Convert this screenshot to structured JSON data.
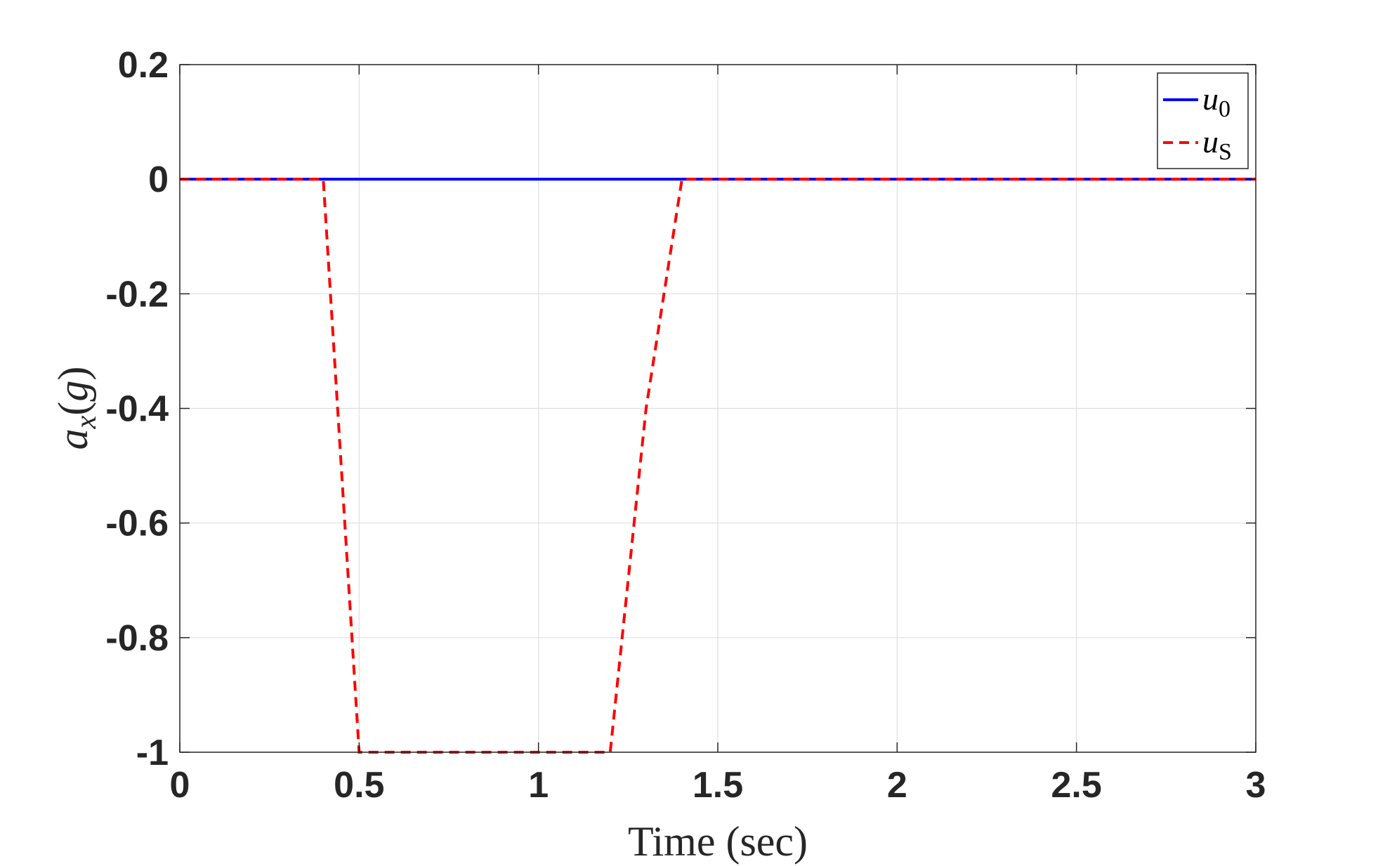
{
  "chart_data": {
    "type": "line",
    "xlabel": "Time (sec)",
    "ylabel": {
      "var": "a",
      "sub": "x",
      "unit": "g"
    },
    "xlim": [
      0,
      3
    ],
    "ylim": [
      -1,
      0.2
    ],
    "xticks": [
      0,
      0.5,
      1,
      1.5,
      2,
      2.5,
      3
    ],
    "xtick_labels": [
      "0",
      "0.5",
      "1",
      "1.5",
      "2",
      "2.5",
      "3"
    ],
    "yticks": [
      0.2,
      0,
      -0.2,
      -0.4,
      -0.6,
      -0.8,
      -1
    ],
    "ytick_labels": [
      "0.2",
      "0",
      "-0.2",
      "-0.4",
      "-0.6",
      "-0.8",
      "-1"
    ],
    "grid": true,
    "legend_position": "top-right",
    "series": [
      {
        "name": "u_0",
        "legend_base": "u",
        "legend_sub": "0",
        "color": "#0000ff",
        "style": "solid",
        "x": [
          0,
          3
        ],
        "y": [
          0,
          0
        ]
      },
      {
        "name": "u_S",
        "legend_base": "u",
        "legend_sub": "S",
        "color": "#ff0000",
        "style": "dashed",
        "x": [
          0,
          0.4,
          0.5,
          1.2,
          1.3,
          1.4,
          3
        ],
        "y": [
          0,
          0,
          -1,
          -1,
          -0.4,
          0,
          0
        ]
      }
    ]
  }
}
